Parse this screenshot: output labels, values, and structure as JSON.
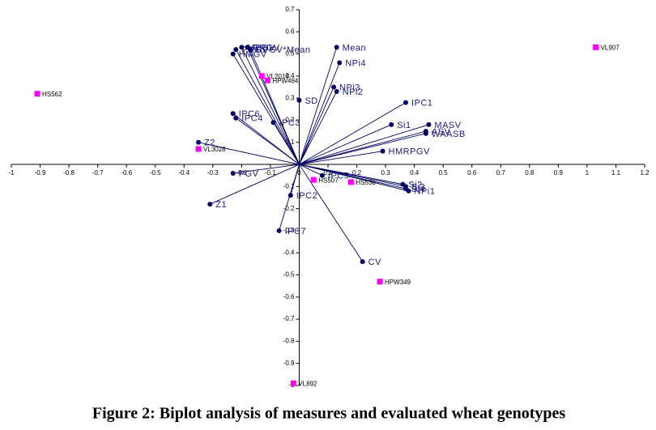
{
  "chart_data": {
    "type": "biplot",
    "title": "Figure 2: Biplot analysis of measures and evaluated wheat genotypes",
    "xlim": [
      -1,
      1.2
    ],
    "ylim": [
      -1,
      0.7
    ],
    "xticks": [
      -1,
      -0.9,
      -0.8,
      -0.7,
      -0.6,
      -0.5,
      -0.4,
      -0.3,
      -0.2,
      -0.1,
      0,
      0.1,
      0.2,
      0.3,
      0.4,
      0.5,
      0.6,
      0.7,
      0.8,
      0.9,
      1,
      1.1,
      1.2
    ],
    "yticks": [
      -1,
      -0.9,
      -0.8,
      -0.7,
      -0.6,
      -0.5,
      -0.4,
      -0.3,
      -0.2,
      -0.1,
      0.1,
      0.2,
      0.3,
      0.4,
      0.5,
      0.6,
      0.7
    ],
    "variables": {
      "color": "#000066",
      "labels": [
        "Mean",
        "NPi4",
        "NPi3",
        "NPi2",
        "HMGV",
        "PRGV",
        "MPGV",
        "RPGV",
        "RPGV*Mean",
        "SD",
        "IPC1",
        "Si1",
        "MASV",
        "ASV",
        "WAASB",
        "HMRPGV",
        "IPC6",
        "IPC4",
        "IPC3",
        "Z2",
        "PGV",
        "Z1",
        "IPC2",
        "IPC7",
        "CV",
        "IPC5",
        "Si2",
        "Si3",
        "Si4",
        "NPi1"
      ],
      "x": [
        0.13,
        0.14,
        0.12,
        0.13,
        -0.23,
        -0.22,
        -0.2,
        -0.18,
        -0.17,
        0,
        0.37,
        0.32,
        0.45,
        0.44,
        0.44,
        0.29,
        -0.23,
        -0.22,
        -0.09,
        -0.35,
        -0.23,
        -0.31,
        -0.03,
        -0.07,
        0.22,
        0.08,
        0.36,
        0.37,
        0.37,
        0.38
      ],
      "y": [
        0.53,
        0.46,
        0.35,
        0.33,
        0.5,
        0.52,
        0.53,
        0.53,
        0.52,
        0.29,
        0.28,
        0.18,
        0.18,
        0.15,
        0.14,
        0.06,
        0.23,
        0.21,
        0.19,
        0.1,
        -0.04,
        -0.18,
        -0.14,
        -0.3,
        -0.44,
        -0.05,
        -0.09,
        -0.1,
        -0.11,
        -0.12
      ]
    },
    "genotypes": {
      "color": "#ff00ff",
      "labels": [
        "VL907",
        "HS562",
        "VL2014",
        "HPW484",
        "VL3028",
        "HS507",
        "HS536",
        "HPW349",
        "VL892"
      ],
      "x": [
        1.03,
        -0.91,
        -0.13,
        -0.11,
        -0.35,
        0.05,
        0.18,
        0.28,
        -0.02
      ],
      "y": [
        0.53,
        0.32,
        0.4,
        0.38,
        0.07,
        -0.07,
        -0.08,
        -0.53,
        -0.99
      ]
    }
  }
}
